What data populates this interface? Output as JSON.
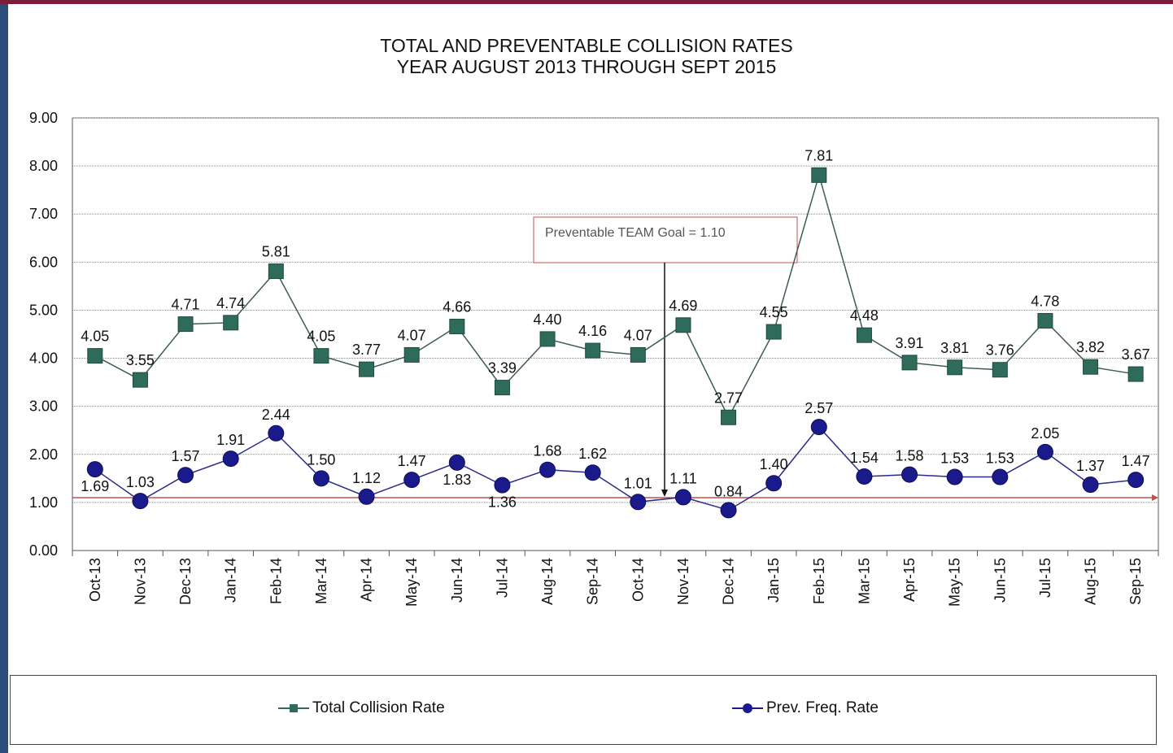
{
  "chart_data": {
    "type": "line",
    "title": "TOTAL AND PREVENTABLE COLLISION RATES",
    "subtitle": "YEAR AUGUST 2013 THROUGH SEPT 2015",
    "xlabel": "",
    "ylabel": "",
    "ylim": [
      0,
      9
    ],
    "yticks": [
      "0.00",
      "1.00",
      "2.00",
      "3.00",
      "4.00",
      "5.00",
      "6.00",
      "7.00",
      "8.00",
      "9.00"
    ],
    "grid": true,
    "legend": "bottom",
    "categories": [
      "Oct-13",
      "Nov-13",
      "Dec-13",
      "Jan-14",
      "Feb-14",
      "Mar-14",
      "Apr-14",
      "May-14",
      "Jun-14",
      "Jul-14",
      "Aug-14",
      "Sep-14",
      "Oct-14",
      "Nov-14",
      "Dec-14",
      "Jan-15",
      "Feb-15",
      "Mar-15",
      "Apr-15",
      "May-15",
      "Jun-15",
      "Jul-15",
      "Aug-15",
      "Sep-15"
    ],
    "series": [
      {
        "name": "Total Collision Rate",
        "color": "#2f6b5a",
        "marker": "square",
        "values": [
          4.05,
          3.55,
          4.71,
          4.74,
          5.81,
          4.05,
          3.77,
          4.07,
          4.66,
          3.39,
          4.4,
          4.16,
          4.07,
          4.69,
          2.77,
          4.55,
          7.81,
          4.48,
          3.91,
          3.81,
          3.76,
          4.78,
          3.82,
          3.67
        ],
        "labels": [
          "4.05",
          "3.55",
          "4.71",
          "4.74",
          "5.81",
          "4.05",
          "3.77",
          "4.07",
          "4.66",
          "3.39",
          "4.40",
          "4.16",
          "4.07",
          "4.69",
          "2.77",
          "4.55",
          "7.81",
          "4.48",
          "3.91",
          "3.81",
          "3.76",
          "4.78",
          "3.82",
          "3.67"
        ]
      },
      {
        "name": "Prev. Freq. Rate",
        "color": "#1a1a8c",
        "marker": "circle",
        "values": [
          1.69,
          1.03,
          1.57,
          1.91,
          2.44,
          1.5,
          1.12,
          1.47,
          1.83,
          1.36,
          1.68,
          1.62,
          1.01,
          1.11,
          0.84,
          1.4,
          2.57,
          1.54,
          1.58,
          1.53,
          1.53,
          2.05,
          1.37,
          1.47
        ],
        "labels": [
          "1.69",
          "1.03",
          "1.57",
          "1.91",
          "2.44",
          "1.50",
          "1.12",
          "1.47",
          "1.83",
          "1.36",
          "1.68",
          "1.62",
          "1.01",
          "1.11",
          "0.84",
          "1.40",
          "2.57",
          "1.54",
          "1.58",
          "1.53",
          "1.53",
          "2.05",
          "1.37",
          "1.47"
        ]
      }
    ],
    "goal_line": {
      "value": 1.1,
      "color": "#c0504d",
      "annotation": "Preventable TEAM Goal = 1.10"
    }
  },
  "colors": {
    "frame": "#2c4d7a",
    "accent": "#7a1e3a",
    "grid": "#9a9a9a",
    "axis": "#444444"
  }
}
